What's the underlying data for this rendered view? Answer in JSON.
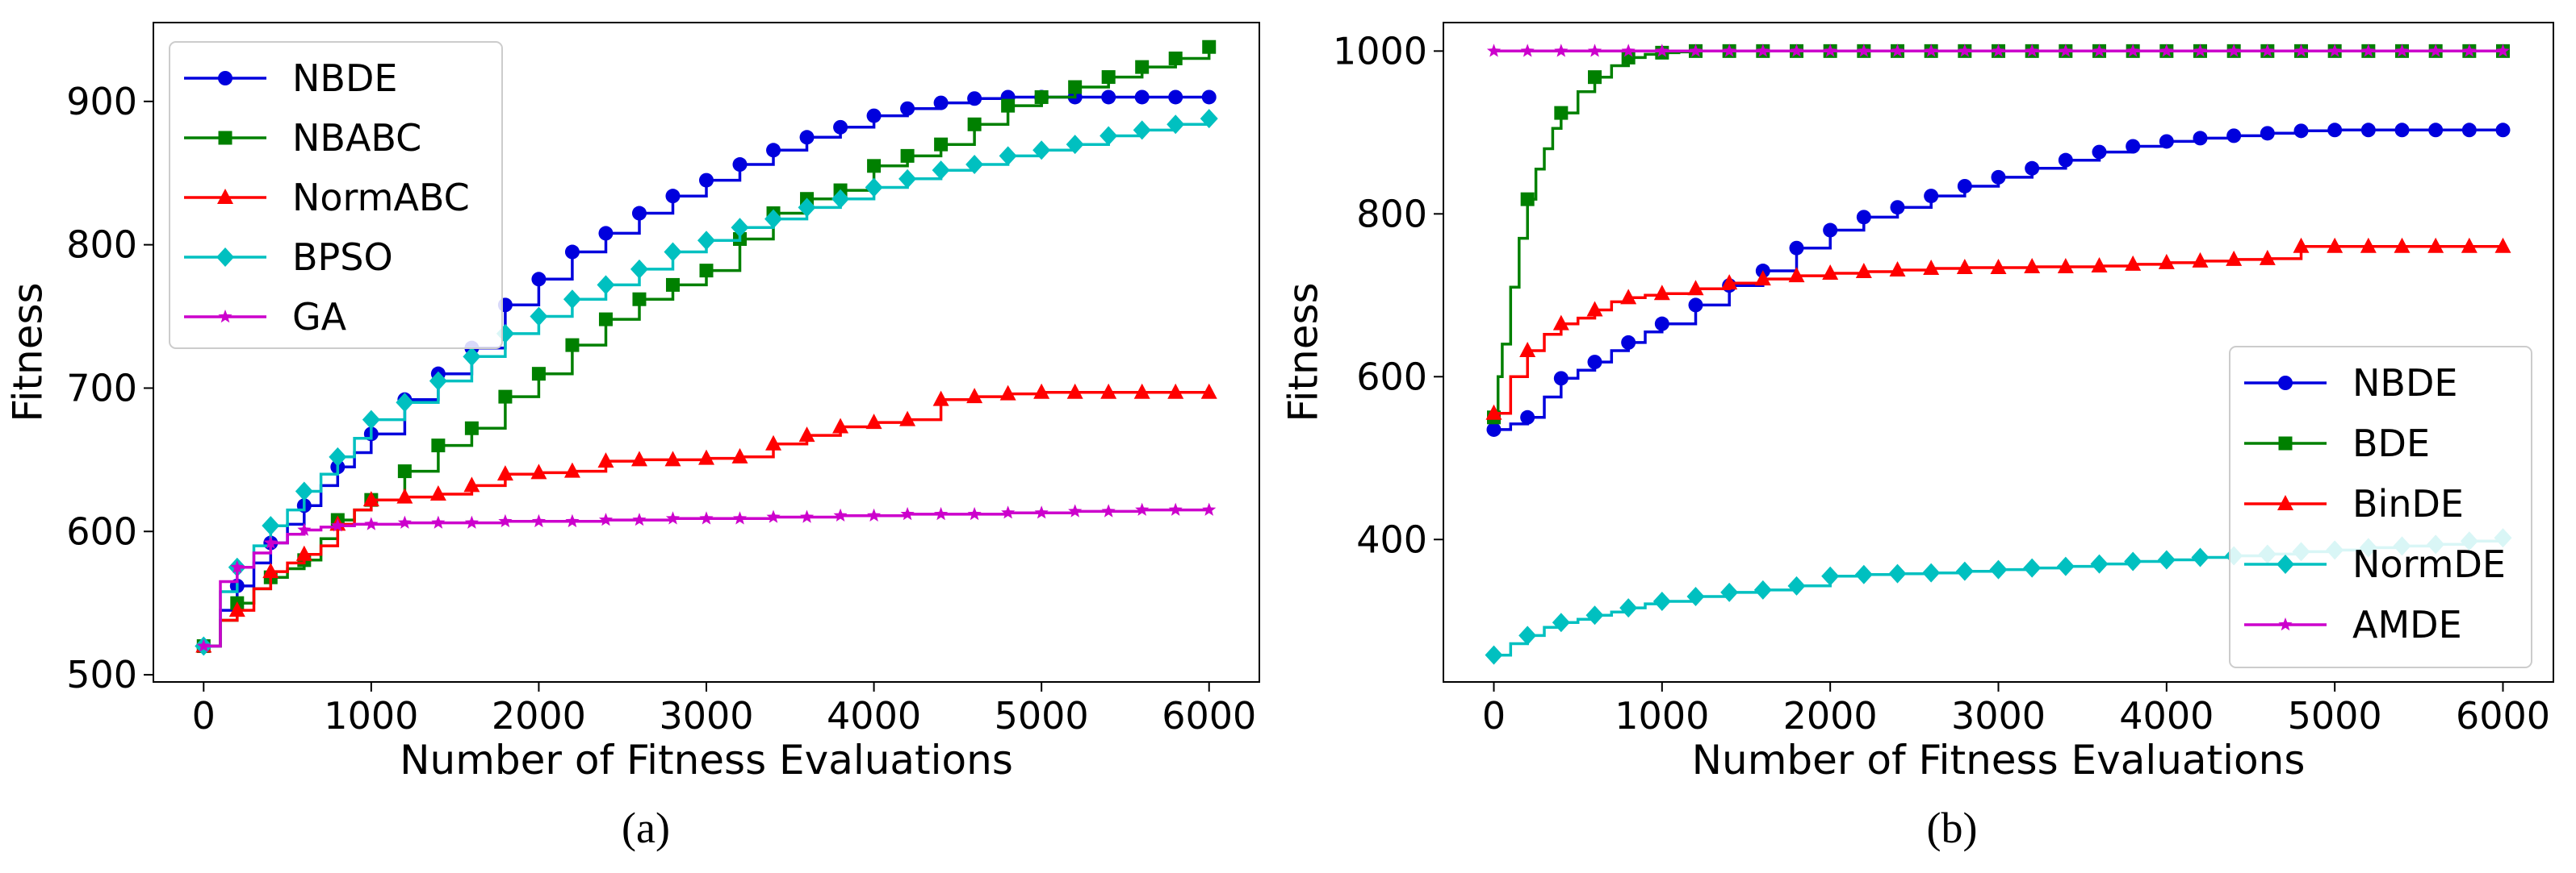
{
  "chart_data": [
    {
      "type": "line",
      "caption": "(a)",
      "xlabel": "Number of Fitness Evaluations",
      "ylabel": "Fitness",
      "xlim": [
        -300,
        6300
      ],
      "ylim": [
        495,
        955
      ],
      "xticks": [
        0,
        1000,
        2000,
        3000,
        4000,
        5000,
        6000
      ],
      "yticks": [
        500,
        600,
        700,
        800,
        900
      ],
      "step": true,
      "marker_every": 200,
      "legend_location": "upper-left",
      "series": [
        {
          "name": "NBDE",
          "color": "#0000dd",
          "marker": "circle",
          "x": [
            0,
            100,
            200,
            300,
            400,
            500,
            600,
            700,
            800,
            900,
            1000,
            1200,
            1400,
            1600,
            1800,
            2000,
            2200,
            2400,
            2600,
            2800,
            3000,
            3200,
            3400,
            3600,
            3800,
            4000,
            4200,
            4400,
            4600,
            4800,
            5000,
            5200,
            5400,
            5600,
            5800,
            6000
          ],
          "y": [
            520,
            545,
            562,
            578,
            592,
            605,
            618,
            632,
            645,
            655,
            668,
            692,
            710,
            728,
            758,
            776,
            795,
            808,
            822,
            834,
            845,
            856,
            866,
            875,
            882,
            890,
            895,
            899,
            902,
            903,
            903,
            903,
            903,
            903,
            903,
            903
          ]
        },
        {
          "name": "NBABC",
          "color": "#008000",
          "marker": "square",
          "x": [
            0,
            100,
            200,
            300,
            400,
            500,
            600,
            700,
            800,
            900,
            1000,
            1200,
            1400,
            1600,
            1800,
            2000,
            2200,
            2400,
            2600,
            2800,
            3000,
            3200,
            3400,
            3600,
            3800,
            4000,
            4200,
            4400,
            4600,
            4800,
            5000,
            5200,
            5400,
            5600,
            5800,
            6000
          ],
          "y": [
            520,
            538,
            550,
            560,
            568,
            574,
            580,
            595,
            608,
            615,
            622,
            642,
            660,
            672,
            694,
            710,
            730,
            748,
            762,
            772,
            782,
            804,
            822,
            832,
            838,
            855,
            862,
            870,
            884,
            897,
            903,
            910,
            917,
            924,
            930,
            938
          ]
        },
        {
          "name": "NormABC",
          "color": "#ff0000",
          "marker": "triangle",
          "x": [
            0,
            100,
            200,
            300,
            400,
            500,
            600,
            700,
            800,
            900,
            1000,
            1200,
            1400,
            1600,
            1800,
            2000,
            2200,
            2400,
            2600,
            2800,
            3000,
            3200,
            3400,
            3600,
            3800,
            4000,
            4200,
            4400,
            4600,
            4800,
            5000,
            5200,
            5400,
            5600,
            5800,
            6000
          ],
          "y": [
            520,
            538,
            545,
            560,
            572,
            578,
            584,
            590,
            605,
            615,
            622,
            624,
            626,
            632,
            640,
            641,
            642,
            649,
            650,
            650,
            651,
            652,
            661,
            667,
            673,
            676,
            678,
            692,
            694,
            696,
            697,
            697,
            697,
            697,
            697,
            697
          ]
        },
        {
          "name": "BPSO",
          "color": "#00c0c0",
          "marker": "diamond",
          "x": [
            0,
            100,
            200,
            300,
            400,
            500,
            600,
            700,
            800,
            900,
            1000,
            1200,
            1400,
            1600,
            1800,
            2000,
            2200,
            2400,
            2600,
            2800,
            3000,
            3200,
            3400,
            3600,
            3800,
            4000,
            4200,
            4400,
            4600,
            4800,
            5000,
            5200,
            5400,
            5600,
            5800,
            6000
          ],
          "y": [
            520,
            558,
            575,
            590,
            604,
            615,
            628,
            640,
            652,
            665,
            678,
            690,
            705,
            722,
            738,
            750,
            762,
            772,
            783,
            795,
            803,
            812,
            818,
            826,
            832,
            840,
            846,
            852,
            856,
            862,
            866,
            870,
            876,
            880,
            884,
            888
          ]
        },
        {
          "name": "GA",
          "color": "#cc00cc",
          "marker": "star",
          "x": [
            0,
            100,
            200,
            300,
            400,
            500,
            600,
            700,
            800,
            900,
            1000,
            1200,
            1400,
            1600,
            1800,
            2000,
            2200,
            2400,
            2600,
            2800,
            3000,
            3200,
            3400,
            3600,
            3800,
            4000,
            4200,
            4400,
            4600,
            4800,
            5000,
            5200,
            5400,
            5600,
            5800,
            6000
          ],
          "y": [
            520,
            565,
            575,
            585,
            592,
            598,
            601,
            603,
            604,
            605,
            605,
            606,
            606,
            606,
            607,
            607,
            607,
            608,
            608,
            609,
            609,
            609,
            610,
            610,
            611,
            611,
            612,
            612,
            612,
            613,
            613,
            614,
            614,
            615,
            615,
            615
          ]
        }
      ]
    },
    {
      "type": "line",
      "caption": "(b)",
      "xlabel": "Number of Fitness Evaluations",
      "ylabel": "Fitness",
      "xlim": [
        -300,
        6300
      ],
      "ylim": [
        225,
        1035
      ],
      "xticks": [
        0,
        1000,
        2000,
        3000,
        4000,
        5000,
        6000
      ],
      "yticks": [
        400,
        600,
        800,
        1000
      ],
      "step": true,
      "marker_every": 200,
      "legend_location": "lower-right",
      "series": [
        {
          "name": "NBDE",
          "color": "#0000dd",
          "marker": "circle",
          "x": [
            0,
            100,
            200,
            300,
            400,
            500,
            600,
            700,
            800,
            900,
            1000,
            1200,
            1400,
            1600,
            1800,
            2000,
            2200,
            2400,
            2600,
            2800,
            3000,
            3200,
            3400,
            3600,
            3800,
            4000,
            4200,
            4400,
            4600,
            4800,
            5000,
            5200,
            5400,
            5600,
            5800,
            6000
          ],
          "y": [
            535,
            542,
            550,
            575,
            598,
            608,
            618,
            632,
            642,
            655,
            665,
            688,
            712,
            730,
            758,
            780,
            796,
            808,
            822,
            834,
            845,
            856,
            866,
            876,
            883,
            889,
            893,
            896,
            899,
            902,
            903,
            903,
            903,
            903,
            903,
            903
          ]
        },
        {
          "name": "BDE",
          "color": "#008000",
          "marker": "square",
          "x": [
            0,
            25,
            50,
            100,
            150,
            200,
            250,
            300,
            350,
            400,
            500,
            600,
            700,
            800,
            900,
            1000,
            1100,
            1200,
            1400,
            1600,
            1800,
            2000,
            2200,
            2400,
            2600,
            2800,
            3000,
            3200,
            3400,
            3600,
            3800,
            4000,
            4200,
            4400,
            4600,
            4800,
            5000,
            5200,
            5400,
            5600,
            5800,
            6000
          ],
          "y": [
            550,
            600,
            640,
            710,
            770,
            818,
            855,
            880,
            905,
            924,
            950,
            968,
            982,
            992,
            996,
            998,
            999,
            1000,
            1000,
            1000,
            1000,
            1000,
            1000,
            1000,
            1000,
            1000,
            1000,
            1000,
            1000,
            1000,
            1000,
            1000,
            1000,
            1000,
            1000,
            1000,
            1000,
            1000,
            1000,
            1000,
            1000,
            1000
          ]
        },
        {
          "name": "BinDE",
          "color": "#ff0000",
          "marker": "triangle",
          "x": [
            0,
            100,
            200,
            300,
            400,
            500,
            600,
            700,
            800,
            900,
            1000,
            1200,
            1400,
            1600,
            1800,
            2000,
            2200,
            2400,
            2600,
            2800,
            3000,
            3200,
            3400,
            3600,
            3800,
            4000,
            4200,
            4400,
            4600,
            4800,
            5000,
            5200,
            5400,
            5600,
            5800,
            6000
          ],
          "y": [
            555,
            600,
            632,
            652,
            665,
            672,
            682,
            692,
            697,
            700,
            702,
            708,
            715,
            720,
            724,
            727,
            729,
            731,
            733,
            734,
            734,
            735,
            735,
            736,
            738,
            740,
            742,
            744,
            745,
            760,
            760,
            760,
            760,
            760,
            760,
            760
          ]
        },
        {
          "name": "NormDE",
          "color": "#00c0c0",
          "marker": "diamond",
          "x": [
            0,
            100,
            200,
            300,
            400,
            500,
            600,
            700,
            800,
            900,
            1000,
            1200,
            1400,
            1600,
            1800,
            2000,
            2200,
            2400,
            2600,
            2800,
            3000,
            3200,
            3400,
            3600,
            3800,
            4000,
            4200,
            4400,
            4600,
            4800,
            5000,
            5200,
            5400,
            5600,
            5800,
            6000
          ],
          "y": [
            258,
            272,
            282,
            292,
            298,
            302,
            307,
            311,
            316,
            321,
            324,
            330,
            335,
            338,
            343,
            355,
            357,
            358,
            359,
            361,
            363,
            365,
            367,
            370,
            373,
            375,
            378,
            380,
            382,
            385,
            387,
            390,
            392,
            394,
            398,
            402
          ]
        },
        {
          "name": "AMDE",
          "color": "#cc00cc",
          "marker": "star",
          "x": [
            0,
            100,
            200,
            300,
            400,
            500,
            600,
            700,
            800,
            900,
            1000,
            1200,
            1400,
            1600,
            1800,
            2000,
            2200,
            2400,
            2600,
            2800,
            3000,
            3200,
            3400,
            3600,
            3800,
            4000,
            4200,
            4400,
            4600,
            4800,
            5000,
            5200,
            5400,
            5600,
            5800,
            6000
          ],
          "y": [
            1000,
            1000,
            1000,
            1000,
            1000,
            1000,
            1000,
            1000,
            1000,
            1000,
            1000,
            1000,
            1000,
            1000,
            1000,
            1000,
            1000,
            1000,
            1000,
            1000,
            1000,
            1000,
            1000,
            1000,
            1000,
            1000,
            1000,
            1000,
            1000,
            1000,
            1000,
            1000,
            1000,
            1000,
            1000,
            1000
          ]
        }
      ]
    }
  ]
}
